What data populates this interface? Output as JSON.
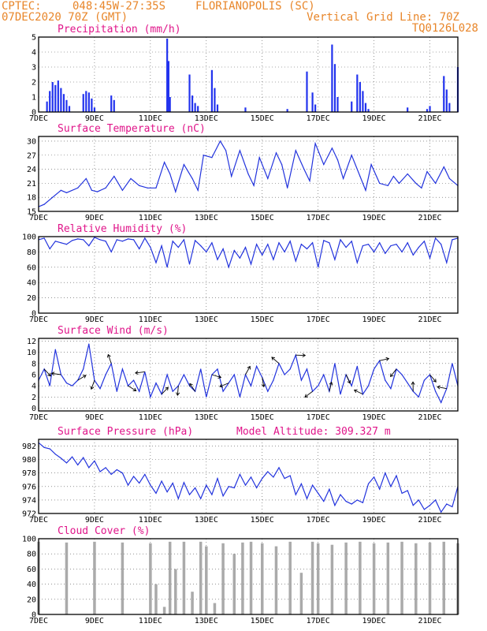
{
  "header": {
    "source": "CPTEC:",
    "coords": "048:45W-27:35S",
    "location": "FLORIANOPOLIS (SC)",
    "run": "07DEC2020 70Z (GMT)",
    "grid_note": "Vertical Grid Line: 70Z",
    "model": "TQ0126L028"
  },
  "x_ticks": [
    "7DEC",
    "9DEC",
    "11DEC",
    "13DEC",
    "15DEC",
    "17DEC",
    "19DEC",
    "21DEC"
  ],
  "colors": {
    "series": "#2233dd",
    "title": "#e0158a",
    "header": "#e8862a",
    "cloud": "#aaaaaa"
  },
  "chart_data": [
    {
      "type": "bar",
      "title": "Precipitation (mm/h)",
      "x_days": [
        7,
        22
      ],
      "ylim": [
        0,
        5
      ],
      "yticks": [
        "0",
        "1",
        "2",
        "3",
        "4",
        "5"
      ],
      "x": [
        7.3,
        7.4,
        7.5,
        7.6,
        7.7,
        7.8,
        7.9,
        8.0,
        8.1,
        8.6,
        8.7,
        8.8,
        8.9,
        9.0,
        9.6,
        9.7,
        11.6,
        11.65,
        11.7,
        12.4,
        12.5,
        12.6,
        12.7,
        13.2,
        13.3,
        13.4,
        14.4,
        15.9,
        16.6,
        16.8,
        16.9,
        17.5,
        17.6,
        17.7,
        18.2,
        18.4,
        18.5,
        18.6,
        18.7,
        18.8,
        20.2,
        20.9,
        21.0,
        21.5,
        21.6,
        21.7,
        22.0
      ],
      "values": [
        0.7,
        1.4,
        2.0,
        1.8,
        2.1,
        1.6,
        1.2,
        0.8,
        0.4,
        1.2,
        1.4,
        1.3,
        0.9,
        0.3,
        1.1,
        0.8,
        4.9,
        3.4,
        1.0,
        2.5,
        1.1,
        0.6,
        0.4,
        2.8,
        1.6,
        0.5,
        0.3,
        0.2,
        2.7,
        1.3,
        0.5,
        4.5,
        3.2,
        1.0,
        0.7,
        2.5,
        2.0,
        1.4,
        0.6,
        0.2,
        0.3,
        0.2,
        0.4,
        2.4,
        1.5,
        0.6,
        3.0
      ]
    },
    {
      "type": "line",
      "title": "Surface Temperature (nC)",
      "x_days": [
        7,
        22
      ],
      "ylim": [
        15,
        31
      ],
      "yticks": [
        "15",
        "18",
        "21",
        "24",
        "27",
        "30"
      ],
      "x": [
        7.0,
        7.2,
        7.5,
        7.8,
        8.0,
        8.4,
        8.7,
        8.9,
        9.1,
        9.4,
        9.7,
        10.0,
        10.3,
        10.6,
        10.9,
        11.2,
        11.5,
        11.7,
        11.9,
        12.2,
        12.5,
        12.7,
        12.9,
        13.2,
        13.5,
        13.7,
        13.9,
        14.2,
        14.5,
        14.7,
        14.9,
        15.2,
        15.5,
        15.7,
        15.9,
        16.2,
        16.5,
        16.7,
        16.9,
        17.2,
        17.5,
        17.7,
        17.9,
        18.2,
        18.5,
        18.7,
        18.9,
        19.2,
        19.5,
        19.7,
        19.9,
        20.2,
        20.5,
        20.7,
        20.9,
        21.2,
        21.5,
        21.7,
        22.0
      ],
      "values": [
        16.0,
        16.5,
        18.0,
        19.5,
        19.0,
        20.0,
        22.0,
        19.5,
        19.2,
        20.0,
        22.5,
        19.5,
        22.0,
        20.5,
        20.0,
        20.0,
        25.5,
        23.0,
        19.2,
        25.0,
        22.0,
        19.5,
        27.0,
        26.5,
        30.0,
        28.0,
        22.5,
        28.0,
        23.0,
        20.5,
        26.5,
        22.0,
        27.5,
        25.0,
        20.0,
        28.0,
        24.0,
        21.5,
        29.5,
        25.0,
        28.5,
        26.0,
        22.0,
        27.0,
        22.5,
        19.5,
        25.0,
        21.0,
        20.5,
        22.5,
        21.0,
        23.0,
        21.0,
        20.0,
        23.5,
        21.0,
        24.5,
        22.0,
        20.5
      ]
    },
    {
      "type": "line",
      "title": "Relative Humidity (%)",
      "x_days": [
        7,
        22
      ],
      "ylim": [
        0,
        100
      ],
      "yticks": [
        "0",
        "20",
        "40",
        "60",
        "80",
        "100"
      ],
      "x": [
        7.0,
        7.2,
        7.4,
        7.6,
        7.8,
        8.0,
        8.2,
        8.4,
        8.6,
        8.8,
        9.0,
        9.2,
        9.4,
        9.6,
        9.8,
        10.0,
        10.2,
        10.4,
        10.6,
        10.8,
        11.0,
        11.2,
        11.4,
        11.6,
        11.8,
        12.0,
        12.2,
        12.4,
        12.6,
        12.8,
        13.0,
        13.2,
        13.4,
        13.6,
        13.8,
        14.0,
        14.2,
        14.4,
        14.6,
        14.8,
        15.0,
        15.2,
        15.4,
        15.6,
        15.8,
        16.0,
        16.2,
        16.4,
        16.6,
        16.8,
        17.0,
        17.2,
        17.4,
        17.6,
        17.8,
        18.0,
        18.2,
        18.4,
        18.6,
        18.8,
        19.0,
        19.2,
        19.4,
        19.6,
        19.8,
        20.0,
        20.2,
        20.4,
        20.6,
        20.8,
        21.0,
        21.2,
        21.4,
        21.6,
        21.8,
        22.0
      ],
      "values": [
        96,
        98,
        84,
        94,
        92,
        90,
        95,
        97,
        96,
        88,
        99,
        96,
        94,
        80,
        96,
        94,
        97,
        96,
        84,
        98,
        86,
        66,
        88,
        60,
        94,
        86,
        96,
        64,
        95,
        88,
        80,
        92,
        70,
        84,
        60,
        82,
        72,
        86,
        64,
        90,
        76,
        90,
        70,
        92,
        80,
        94,
        68,
        90,
        84,
        92,
        60,
        95,
        92,
        70,
        96,
        86,
        94,
        66,
        88,
        90,
        80,
        92,
        78,
        88,
        90,
        80,
        92,
        76,
        86,
        94,
        72,
        98,
        90,
        66,
        96,
        98
      ]
    },
    {
      "type": "line",
      "title": "Surface Wind (m/s)",
      "x_days": [
        7,
        22
      ],
      "ylim": [
        -0.5,
        12.5
      ],
      "yticks": [
        "0",
        "2",
        "4",
        "6",
        "8",
        "10",
        "12"
      ],
      "x": [
        7.0,
        7.2,
        7.4,
        7.6,
        7.8,
        8.0,
        8.2,
        8.4,
        8.6,
        8.8,
        9.0,
        9.2,
        9.4,
        9.6,
        9.8,
        10.0,
        10.2,
        10.4,
        10.6,
        10.8,
        11.0,
        11.2,
        11.4,
        11.6,
        11.8,
        12.0,
        12.2,
        12.4,
        12.6,
        12.8,
        13.0,
        13.2,
        13.4,
        13.6,
        13.8,
        14.0,
        14.2,
        14.4,
        14.6,
        14.8,
        15.0,
        15.2,
        15.4,
        15.6,
        15.8,
        16.0,
        16.2,
        16.4,
        16.6,
        16.8,
        17.0,
        17.2,
        17.4,
        17.6,
        17.8,
        18.0,
        18.2,
        18.4,
        18.6,
        18.8,
        19.0,
        19.2,
        19.4,
        19.6,
        19.8,
        20.0,
        20.2,
        20.4,
        20.6,
        20.8,
        21.0,
        21.2,
        21.4,
        21.6,
        21.8,
        22.0
      ],
      "values": [
        5,
        7,
        4,
        10.5,
        6,
        4.5,
        4,
        5,
        7,
        11.5,
        5,
        3.5,
        6,
        8,
        3,
        7,
        4,
        5,
        3,
        6.5,
        2,
        4.5,
        2.5,
        6,
        3,
        4,
        6,
        4,
        3,
        7,
        2,
        6,
        7,
        3,
        4.5,
        6,
        2,
        6,
        4,
        7.5,
        5.5,
        3,
        5,
        8,
        6,
        7,
        9.5,
        5,
        7,
        3,
        4,
        6,
        3,
        8,
        2.5,
        6,
        4,
        7.5,
        2.5,
        4,
        7,
        8.5,
        5,
        3.5,
        7,
        6,
        4.5,
        3,
        2,
        5,
        6,
        3,
        1,
        3.5,
        8,
        4
      ]
    },
    {
      "type": "line",
      "title": "Surface Pressure (hPa)",
      "x_days": [
        7,
        22
      ],
      "annotation": "Model Altitude: 309.327 m",
      "ylim": [
        972,
        983
      ],
      "yticks": [
        "972",
        "974",
        "976",
        "978",
        "980",
        "982"
      ],
      "x": [
        7.0,
        7.2,
        7.4,
        7.6,
        7.8,
        8.0,
        8.2,
        8.4,
        8.6,
        8.8,
        9.0,
        9.2,
        9.4,
        9.6,
        9.8,
        10.0,
        10.2,
        10.4,
        10.6,
        10.8,
        11.0,
        11.2,
        11.4,
        11.6,
        11.8,
        12.0,
        12.2,
        12.4,
        12.6,
        12.8,
        13.0,
        13.2,
        13.4,
        13.6,
        13.8,
        14.0,
        14.2,
        14.4,
        14.6,
        14.8,
        15.0,
        15.2,
        15.4,
        15.6,
        15.8,
        16.0,
        16.2,
        16.4,
        16.6,
        16.8,
        17.0,
        17.2,
        17.4,
        17.6,
        17.8,
        18.0,
        18.2,
        18.4,
        18.6,
        18.8,
        19.0,
        19.2,
        19.4,
        19.6,
        19.8,
        20.0,
        20.2,
        20.4,
        20.6,
        20.8,
        21.0,
        21.2,
        21.4,
        21.6,
        21.8,
        22.0
      ],
      "values": [
        982.5,
        981.8,
        981.6,
        980.8,
        980.2,
        979.5,
        980.4,
        979.2,
        980.3,
        978.8,
        979.8,
        978.2,
        978.8,
        977.8,
        978.5,
        978.0,
        976.2,
        977.5,
        976.5,
        977.8,
        976.2,
        975.0,
        976.8,
        975.2,
        976.5,
        974.2,
        976.6,
        974.8,
        975.8,
        974.2,
        976.2,
        974.8,
        977.2,
        974.6,
        976.0,
        975.8,
        977.8,
        976.2,
        977.4,
        975.8,
        977.2,
        978.2,
        977.4,
        978.8,
        977.2,
        977.6,
        974.8,
        976.4,
        974.2,
        976.2,
        975.0,
        973.8,
        975.6,
        973.2,
        974.8,
        973.8,
        973.4,
        974.0,
        973.6,
        976.4,
        977.4,
        975.6,
        978.0,
        976.0,
        977.6,
        975.0,
        975.4,
        973.2,
        974.0,
        972.6,
        973.2,
        974.0,
        972.2,
        973.4,
        973.0,
        976.0
      ]
    },
    {
      "type": "bar",
      "title": "Cloud Cover (%)",
      "x_days": [
        7,
        22
      ],
      "ylim": [
        0,
        100
      ],
      "yticks": [
        "0",
        "20",
        "40",
        "60",
        "80",
        "100"
      ],
      "x": [
        7.0,
        8.0,
        9.0,
        10.0,
        11.0,
        11.2,
        11.5,
        11.7,
        11.9,
        12.2,
        12.5,
        12.8,
        13.0,
        13.3,
        13.6,
        14.0,
        14.3,
        14.6,
        15.0,
        15.5,
        16.0,
        16.4,
        16.8,
        17.0,
        17.5,
        18.0,
        18.5,
        19.0,
        19.5,
        20.0,
        20.5,
        21.0,
        21.5,
        22.0
      ],
      "values": [
        96,
        95,
        96,
        95,
        94,
        40,
        10,
        96,
        60,
        96,
        30,
        96,
        90,
        15,
        94,
        80,
        95,
        96,
        94,
        90,
        96,
        55,
        96,
        94,
        92,
        95,
        96,
        94,
        95,
        96,
        94,
        95,
        96,
        94
      ]
    }
  ]
}
